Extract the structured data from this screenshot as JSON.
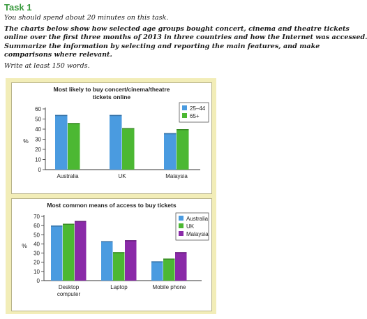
{
  "task": {
    "title": "Task 1",
    "line1": "You should spend about 20 minutes on this task.",
    "line2": "The charts below show how selected age groups bought concert, cinema and theatre tickets",
    "line3": "online over the first three months of 2013 in three countries and how the Internet was accessed.",
    "line4": "Summarize the information by selecting and reporting the main features, and make",
    "line5": "comparisons where relevant.",
    "line6": "Write at least 150 words."
  },
  "chart_data": [
    {
      "type": "bar",
      "title_lines": [
        "Most likely to buy concert/cinema/theatre",
        "tickets online"
      ],
      "ylabel": "%",
      "xlabel": "",
      "ylim": [
        0,
        60
      ],
      "yticks": [
        0,
        10,
        20,
        30,
        40,
        50,
        60
      ],
      "categories": [
        "Australia",
        "UK",
        "Malaysia"
      ],
      "series": [
        {
          "name": "25–44",
          "values": [
            54,
            54,
            36
          ],
          "color": "#4a9be0"
        },
        {
          "name": "65+",
          "values": [
            46,
            41,
            40
          ],
          "color": "#4cb833"
        }
      ],
      "legend": "top-right"
    },
    {
      "type": "bar",
      "title_lines": [
        "Most common means of access to buy tickets"
      ],
      "ylabel": "%",
      "xlabel": "",
      "ylim": [
        0,
        70
      ],
      "yticks": [
        0,
        10,
        20,
        30,
        40,
        50,
        60,
        70
      ],
      "categories": [
        [
          "Desktop",
          "computer"
        ],
        [
          "Laptop"
        ],
        [
          "Mobile phone"
        ]
      ],
      "series": [
        {
          "name": "Australia",
          "values": [
            60,
            43,
            21
          ],
          "color": "#4a9be0"
        },
        {
          "name": "UK",
          "values": [
            62,
            31,
            24
          ],
          "color": "#4cb833"
        },
        {
          "name": "Malaysia",
          "values": [
            65,
            44,
            31
          ],
          "color": "#8a2aa8"
        }
      ],
      "legend": "top-right"
    }
  ]
}
